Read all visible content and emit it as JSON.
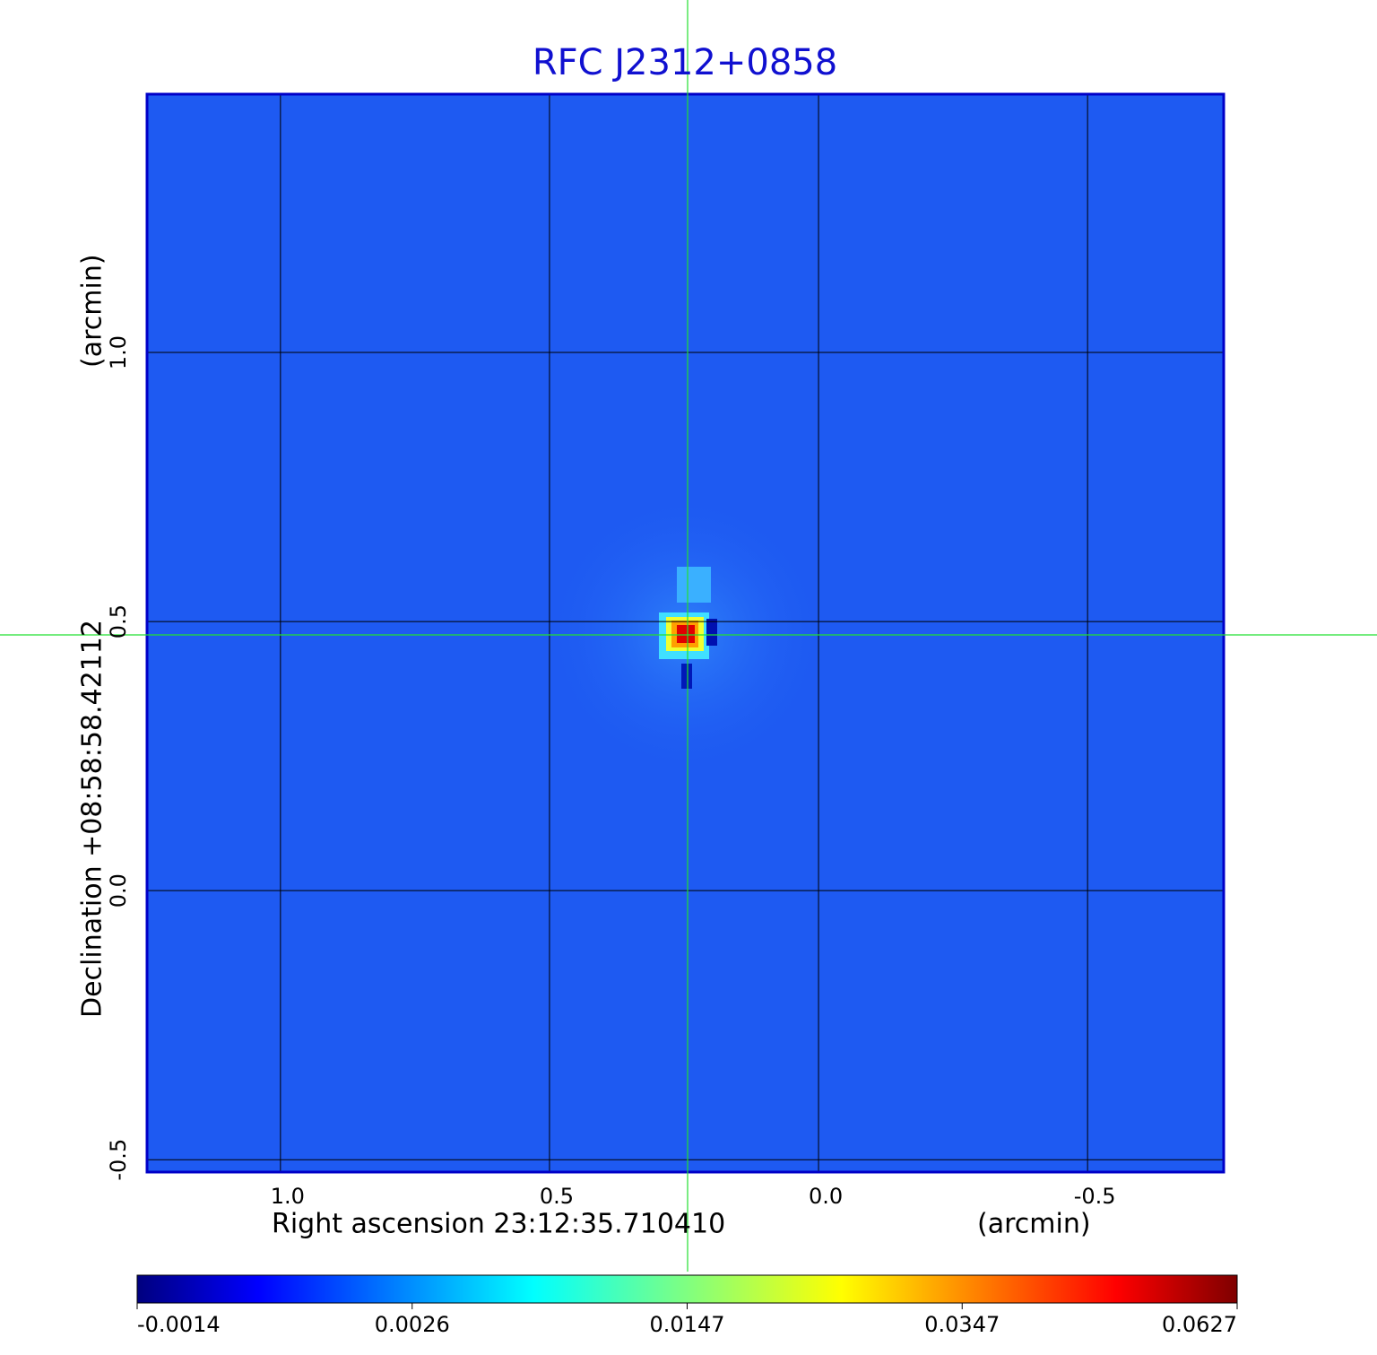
{
  "chart_data": {
    "type": "image",
    "title": "RFC J2312+0858",
    "xlabel": "Right ascension  23:12:35.710410",
    "xunit": "(arcmin)",
    "ylabel": "Declination  +08:58:58.42112",
    "yunit": "(arcmin)",
    "xlim": [
      1.248,
      -0.753
    ],
    "ylim": [
      -0.523,
      1.48
    ],
    "xticks": [
      {
        "value": 1,
        "label": "1.0"
      },
      0.5,
      {
        "value": 0,
        "label": "0.0"
      },
      -0.5
    ],
    "yticks": [
      -0.5,
      {
        "value": 0,
        "label": "0.0"
      },
      0.5,
      {
        "value": 1,
        "label": "1.0"
      }
    ],
    "grid": true,
    "colorbar_ticks": [
      -0.0014,
      0.0026,
      0.0147,
      0.0347,
      0.0627
    ]
  }
}
